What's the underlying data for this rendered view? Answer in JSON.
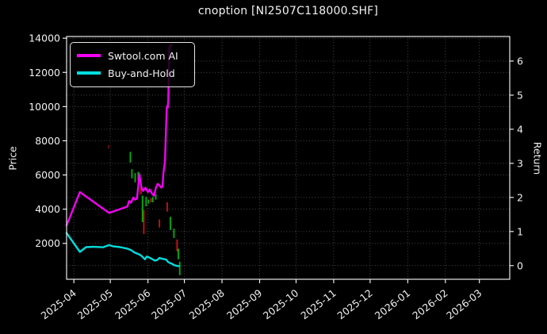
{
  "title": "cnoption [NI2507C118000.SHF]",
  "colors": {
    "background": "#000000",
    "axis": "#ffffff",
    "grid": "#b0b0b0",
    "text": "#f0f0f0",
    "ai_line": "#f500f5",
    "bh_line": "#00dcdc",
    "candle_up": "#00b40a",
    "candle_down": "#d01010",
    "candle_dark": "#6e0b0b"
  },
  "legend": {
    "position": "upper-left",
    "entries": [
      {
        "label": "Swtool.com AI",
        "color_key": "ai_line"
      },
      {
        "label": "Buy-and-Hold",
        "color_key": "bh_line"
      }
    ]
  },
  "chart_data": {
    "type": "line+candlestick",
    "title": "cnoption [NI2507C118000.SHF]",
    "grid": true,
    "legend_position": "upper left",
    "x_axis": {
      "unit": "days since 2025-03-26",
      "domain_days": [
        0,
        365
      ],
      "tick_days": [
        6,
        36,
        67,
        97,
        128,
        159,
        189,
        220,
        250,
        281,
        312,
        340
      ],
      "tick_labels": [
        "2025-04",
        "2025-05",
        "2025-06",
        "2025-07",
        "2025-08",
        "2025-09",
        "2025-10",
        "2025-11",
        "2025-12",
        "2026-01",
        "2026-02",
        "2026-03"
      ]
    },
    "y_left": {
      "label": "Price",
      "ticks": [
        2000,
        4000,
        6000,
        8000,
        10000,
        12000,
        14000
      ],
      "range": [
        -100,
        14100
      ]
    },
    "y_right": {
      "label": "Return",
      "ticks": [
        0,
        1,
        2,
        3,
        4,
        5,
        6
      ],
      "range": [
        -0.4,
        6.72
      ]
    },
    "series": [
      {
        "name": "Swtool.com AI",
        "axis": "left",
        "color_key": "ai_line",
        "x": [
          0,
          11,
          35,
          50,
          51.5,
          53,
          55,
          56.5,
          58,
          60,
          61.5,
          63,
          65,
          67,
          68.5,
          70.5,
          72,
          73.5,
          75,
          76.5,
          78,
          79,
          79.7,
          81,
          81.8,
          82.5,
          83,
          83.4,
          83.8,
          84.5,
          85.5,
          86.5
        ],
        "y": [
          3050,
          5000,
          3780,
          4150,
          4480,
          4380,
          4680,
          4560,
          4620,
          6050,
          5320,
          5070,
          5250,
          5000,
          5150,
          4900,
          4790,
          5240,
          5480,
          5390,
          5260,
          5330,
          6100,
          6800,
          8500,
          9900,
          10050,
          9950,
          10400,
          13450,
          13550,
          13600
        ]
      },
      {
        "name": "Buy-and-Hold",
        "axis": "left",
        "color_key": "bh_line",
        "x": [
          0,
          11,
          16,
          22,
          30,
          35,
          38,
          44,
          50,
          53,
          56,
          59,
          61.5,
          63.5,
          64.5,
          66,
          67.5,
          69,
          71,
          72.5,
          74.5,
          76.5,
          78,
          80,
          82,
          83.5,
          85.5,
          87,
          88.5,
          90.5,
          92.5
        ],
        "y": [
          2600,
          1500,
          1780,
          1800,
          1770,
          1900,
          1830,
          1780,
          1690,
          1610,
          1460,
          1380,
          1280,
          1140,
          1070,
          1230,
          1190,
          1140,
          1060,
          995,
          1020,
          1150,
          1110,
          1080,
          1050,
          910,
          840,
          800,
          730,
          690,
          670
        ]
      }
    ],
    "candles": [
      {
        "d": 34.5,
        "lo": 7550,
        "hi": 7750,
        "dir": "dark"
      },
      {
        "d": 52.5,
        "lo": 6730,
        "hi": 7350,
        "dir": "up"
      },
      {
        "d": 53.8,
        "lo": 5800,
        "hi": 6340,
        "dir": "up"
      },
      {
        "d": 56.5,
        "lo": 5570,
        "hi": 6110,
        "dir": "up"
      },
      {
        "d": 59.0,
        "lo": 5650,
        "hi": 6190,
        "dir": "up"
      },
      {
        "d": 61.3,
        "lo": 4860,
        "hi": 5330,
        "dir": "down"
      },
      {
        "d": 62.5,
        "lo": 3240,
        "hi": 4790,
        "dir": "up"
      },
      {
        "d": 63.6,
        "lo": 2550,
        "hi": 3940,
        "dir": "down"
      },
      {
        "d": 65.5,
        "lo": 4170,
        "hi": 4720,
        "dir": "up"
      },
      {
        "d": 67.5,
        "lo": 4330,
        "hi": 4560,
        "dir": "up"
      },
      {
        "d": 69.5,
        "lo": 4400,
        "hi": 4640,
        "dir": "down"
      },
      {
        "d": 71.0,
        "lo": 4400,
        "hi": 4720,
        "dir": "up"
      },
      {
        "d": 73.5,
        "lo": 4560,
        "hi": 4870,
        "dir": "up"
      },
      {
        "d": 76.5,
        "lo": 2930,
        "hi": 3400,
        "dir": "down"
      },
      {
        "d": 82.9,
        "lo": 3860,
        "hi": 4400,
        "dir": "down"
      },
      {
        "d": 85.5,
        "lo": 2780,
        "hi": 3550,
        "dir": "up"
      },
      {
        "d": 88.4,
        "lo": 2310,
        "hi": 2860,
        "dir": "up"
      },
      {
        "d": 91.0,
        "lo": 1535,
        "hi": 2230,
        "dir": "down"
      },
      {
        "d": 92.0,
        "lo": 1070,
        "hi": 1690,
        "dir": "up"
      },
      {
        "d": 93.2,
        "lo": 140,
        "hi": 920,
        "dir": "up"
      }
    ]
  }
}
